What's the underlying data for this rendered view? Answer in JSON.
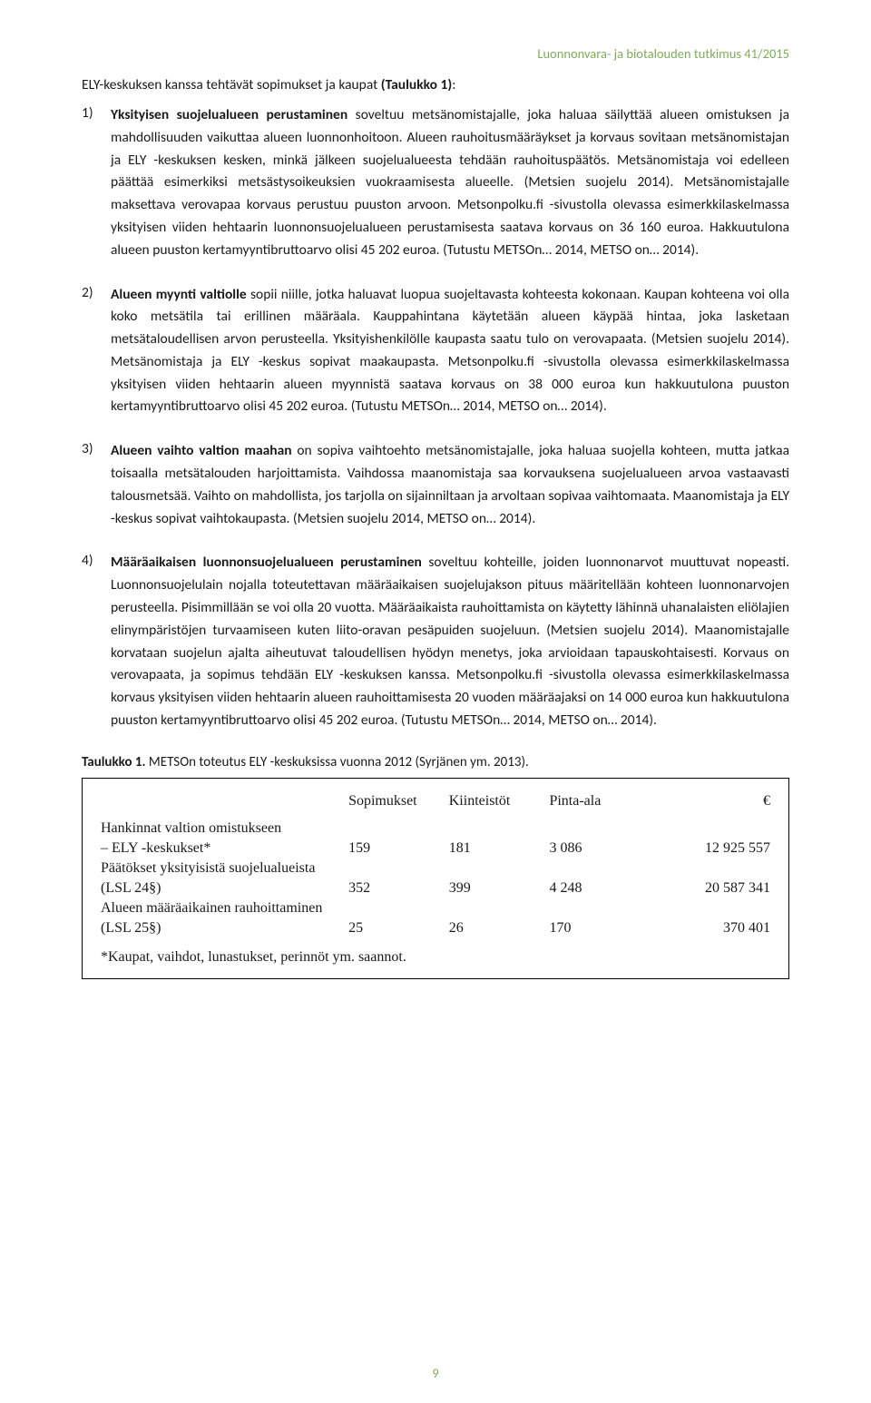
{
  "header": {
    "journal": "Luonnonvara- ja biotalouden tutkimus 41/2015"
  },
  "intro": {
    "text_prefix": "ELY-keskuksen kanssa tehtävät sopimukset ja kaupat ",
    "bold": "(Taulukko 1)",
    "suffix": ":"
  },
  "items": [
    {
      "num": "1)",
      "lead": "Yksityisen suojelualueen perustaminen",
      "body": " soveltuu metsänomistajalle, joka haluaa säilyttää alueen omistuksen ja mahdollisuuden vaikuttaa alueen luonnonhoitoon. Alueen rauhoitusmääräykset ja korvaus sovitaan metsänomistajan ja ELY -keskuksen kesken, minkä jälkeen suojelualueesta tehdään rauhoituspäätös. Metsänomistaja voi edelleen päättää esimerkiksi metsästysoikeuksien vuokraamisesta alueelle. (Metsien suojelu 2014). Metsänomistajalle maksettava verovapaa korvaus perustuu puuston arvoon. Metsonpolku.fi -sivustolla olevassa esimerkkilaskelmassa yksityisen viiden hehtaarin luonnonsuojelualueen perustamisesta saatava korvaus on 36 160 euroa. Hakkuutulona alueen puuston kertamyyntibruttoarvo olisi 45 202 euroa. (Tutustu METSOn… 2014, METSO on… 2014)."
    },
    {
      "num": "2)",
      "lead": "Alueen myynti valtiolle",
      "body": " sopii niille, jotka haluavat luopua suojeltavasta kohteesta kokonaan. Kaupan kohteena voi olla koko metsätila tai erillinen määräala. Kauppahintana käytetään alueen käypää hintaa, joka lasketaan metsätaloudellisen arvon perusteella. Yksityishenkilölle kaupasta saatu tulo on verovapaata. (Metsien suojelu 2014). Metsänomistaja ja ELY -keskus sopivat maakaupasta. Metsonpolku.fi -sivustolla olevassa esimerkkilaskelmassa yksityisen viiden hehtaarin alueen myynnistä saatava korvaus on 38 000 euroa kun hakkuutulona puuston kertamyyntibruttoarvo olisi 45 202 euroa. (Tutustu METSOn… 2014, METSO on… 2014)."
    },
    {
      "num": "3)",
      "lead": "Alueen vaihto valtion maahan",
      "body": " on sopiva vaihtoehto metsänomistajalle, joka haluaa suojella kohteen, mutta jatkaa toisaalla metsätalouden harjoittamista. Vaihdossa maanomistaja saa korvauksena suojelualueen arvoa vastaavasti talousmetsää. Vaihto on mahdollista, jos tarjolla on sijainniltaan ja arvoltaan sopivaa vaihtomaata. Maanomistaja ja ELY -keskus sopivat vaihtokaupasta. (Metsien suojelu 2014, METSO on… 2014)."
    },
    {
      "num": "4)",
      "lead": "Määräaikaisen luonnonsuojelualueen perustaminen",
      "body": " soveltuu kohteille, joiden luonnonarvot muuttuvat nopeasti. Luonnonsuojelulain nojalla toteutettavan määräaikaisen suojelujakson pituus määritellään kohteen luonnonarvojen perusteella. Pisimmillään se voi olla 20 vuotta. Määräaikaista rauhoittamista on käytetty lähinnä uhanalaisten eliölajien elinympäristöjen turvaamiseen kuten liito-oravan pesäpuiden suojeluun. (Metsien suojelu 2014). Maanomistajalle korvataan suojelun ajalta aiheutuvat taloudellisen hyödyn menetys, joka arvioidaan tapauskohtaisesti. Korvaus on verovapaata, ja sopimus tehdään ELY -keskuksen kanssa. Metsonpolku.fi -sivustolla olevassa esimerkkilaskelmassa korvaus yksityisen viiden hehtaarin alueen rauhoittamisesta 20 vuoden määräajaksi on 14 000 euroa kun hakkuutulona puuston kertamyyntibruttoarvo olisi 45 202 euroa. (Tutustu METSOn… 2014, METSO on… 2014)."
    }
  ],
  "table": {
    "caption_bold": "Taulukko 1.",
    "caption_rest": " METSOn toteutus ELY -keskuksissa vuonna 2012 (Syrjänen ym. 2013).",
    "headers": [
      "",
      "Sopimukset",
      "Kiinteistöt",
      "Pinta-ala",
      "€"
    ],
    "rows": [
      {
        "label1": "Hankinnat valtion omistukseen",
        "label2": "– ELY -keskukset*",
        "a": "159",
        "b": "181",
        "c": "3 086",
        "d": "12 925 557"
      },
      {
        "label1": "Päätökset yksityisistä suojelualueista",
        "label2": "(LSL 24§)",
        "a": "352",
        "b": "399",
        "c": "4 248",
        "d": "20 587 341"
      },
      {
        "label1": "Alueen määräaikainen rauhoittaminen",
        "label2": "(LSL 25§)",
        "a": "25",
        "b": "26",
        "c": "170",
        "d": "370 401"
      }
    ],
    "footnote": "*Kaupat, vaihdot, lunastukset, perinnöt ym. saannot."
  },
  "page_number": "9"
}
